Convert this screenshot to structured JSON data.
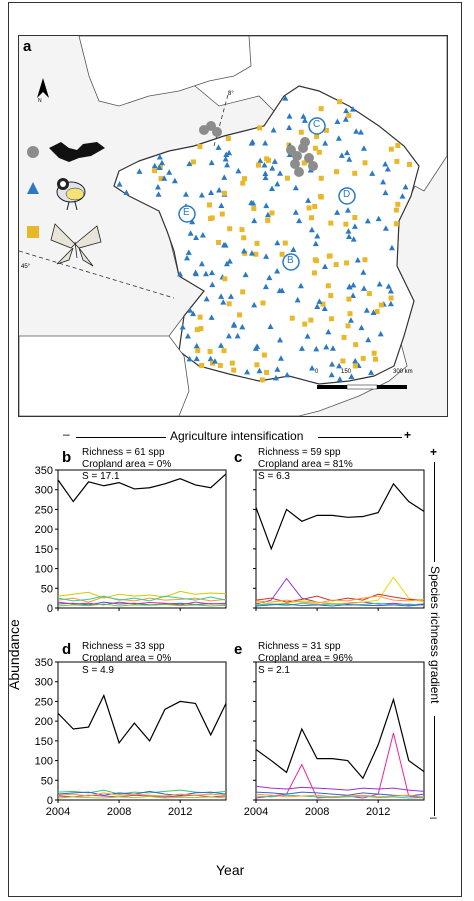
{
  "figure": {
    "map_panel_label": "a",
    "north_label": "N",
    "lat_labels": [
      "45°",
      "8°"
    ],
    "scalebar_ticks": [
      "0",
      "150",
      "300 km"
    ],
    "region_labels": [
      "C",
      "D",
      "E",
      "B"
    ],
    "legend_icons": [
      "bat-icon",
      "bird-icon",
      "butterfly-icon"
    ],
    "gradient_top": {
      "minus": "–",
      "label": "Agriculture intensification",
      "plus": "+"
    },
    "gradient_side": {
      "plus": "+",
      "label": "Species richness gradient",
      "minus": "–"
    },
    "y_axis_label": "Abundance",
    "x_axis_label": "Year",
    "colors": {
      "blue_marker": "#2b79c2",
      "yellow_marker": "#e9b72a",
      "grey_marker": "#8c8c8c",
      "land": "#ffffff",
      "sea": "#f4f4f4"
    }
  },
  "panels": {
    "b": {
      "letter": "b",
      "richness": "Richness = 61 spp",
      "cropland": "Cropland area = 0%",
      "s": "S = 17.1"
    },
    "c": {
      "letter": "c",
      "richness": "Richness = 59 spp",
      "cropland": "Cropland area = 81%",
      "s": "S = 6.3"
    },
    "d": {
      "letter": "d",
      "richness": "Richness = 33 spp",
      "cropland": "Cropland area = 0%",
      "s": "S = 4.9"
    },
    "e": {
      "letter": "e",
      "richness": "Richness = 31 spp",
      "cropland": "Cropland area = 96%",
      "s": "S = 2.1"
    }
  },
  "axes": {
    "y_ticks": [
      "350",
      "300",
      "250",
      "200",
      "150",
      "100",
      "50",
      "0"
    ],
    "x_ticks": [
      "2004",
      "2008",
      "2012"
    ]
  },
  "chart_data": [
    {
      "panel": "b",
      "type": "line",
      "x": [
        2004,
        2005,
        2006,
        2007,
        2008,
        2009,
        2010,
        2011,
        2012,
        2013,
        2014,
        2015
      ],
      "ylim": [
        0,
        350
      ],
      "series": [
        {
          "color": "#000000",
          "values": [
            325,
            270,
            320,
            310,
            318,
            302,
            305,
            315,
            328,
            312,
            305,
            340
          ]
        },
        {
          "color": "#cccc00",
          "values": [
            30,
            35,
            40,
            25,
            35,
            30,
            33,
            28,
            42,
            35,
            38,
            36
          ]
        },
        {
          "color": "#ff9933",
          "values": [
            20,
            25,
            15,
            28,
            22,
            18,
            25,
            20,
            22,
            25,
            18,
            22
          ]
        },
        {
          "color": "#33cc99",
          "values": [
            25,
            18,
            22,
            30,
            20,
            25,
            18,
            30,
            25,
            20,
            28,
            20
          ]
        },
        {
          "color": "#3366cc",
          "values": [
            10,
            12,
            8,
            15,
            10,
            12,
            8,
            10,
            12,
            9,
            11,
            10
          ]
        },
        {
          "color": "#cc3399",
          "values": [
            15,
            10,
            12,
            8,
            15,
            10,
            14,
            12,
            8,
            15,
            10,
            12
          ]
        },
        {
          "color": "#66cc33",
          "values": [
            5,
            8,
            6,
            10,
            5,
            8,
            7,
            9,
            6,
            8,
            5,
            7
          ]
        }
      ]
    },
    {
      "panel": "c",
      "type": "line",
      "x": [
        2004,
        2005,
        2006,
        2007,
        2008,
        2009,
        2010,
        2011,
        2012,
        2013,
        2014,
        2015
      ],
      "ylim": [
        0,
        350
      ],
      "series": [
        {
          "color": "#000000",
          "values": [
            255,
            150,
            250,
            220,
            235,
            235,
            230,
            232,
            242,
            315,
            270,
            245
          ]
        },
        {
          "color": "#9933cc",
          "values": [
            10,
            20,
            75,
            25,
            15,
            10,
            12,
            15,
            10,
            12,
            8,
            10
          ]
        },
        {
          "color": "#dddd00",
          "values": [
            15,
            10,
            12,
            18,
            15,
            12,
            10,
            15,
            20,
            78,
            25,
            15
          ]
        },
        {
          "color": "#cc3333",
          "values": [
            20,
            25,
            15,
            22,
            30,
            18,
            25,
            20,
            35,
            28,
            22,
            20
          ]
        },
        {
          "color": "#ff9933",
          "values": [
            18,
            15,
            20,
            15,
            12,
            20,
            18,
            25,
            30,
            20,
            18,
            22
          ]
        },
        {
          "color": "#33cc99",
          "values": [
            8,
            10,
            6,
            12,
            8,
            10,
            7,
            9,
            12,
            8,
            10,
            7
          ]
        },
        {
          "color": "#3366cc",
          "values": [
            5,
            8,
            10,
            6,
            8,
            5,
            9,
            7,
            6,
            8,
            5,
            9
          ]
        }
      ]
    },
    {
      "panel": "d",
      "type": "line",
      "x": [
        2004,
        2005,
        2006,
        2007,
        2008,
        2009,
        2010,
        2011,
        2012,
        2013,
        2014,
        2015
      ],
      "ylim": [
        0,
        350
      ],
      "series": [
        {
          "color": "#000000",
          "values": [
            220,
            180,
            185,
            265,
            145,
            195,
            150,
            230,
            250,
            245,
            165,
            245
          ]
        },
        {
          "color": "#33cc66",
          "values": [
            20,
            22,
            18,
            25,
            15,
            20,
            18,
            22,
            25,
            20,
            18,
            22
          ]
        },
        {
          "color": "#3366cc",
          "values": [
            15,
            18,
            20,
            12,
            18,
            15,
            22,
            15,
            12,
            18,
            20,
            15
          ]
        },
        {
          "color": "#cc3399",
          "values": [
            10,
            8,
            12,
            10,
            8,
            12,
            10,
            8,
            10,
            12,
            8,
            10
          ]
        },
        {
          "color": "#ff9933",
          "values": [
            12,
            15,
            10,
            18,
            12,
            15,
            12,
            10,
            15,
            12,
            15,
            12
          ]
        },
        {
          "color": "#99cc33",
          "values": [
            5,
            8,
            6,
            5,
            8,
            6,
            9,
            5,
            7,
            6,
            8,
            5
          ]
        }
      ]
    },
    {
      "panel": "e",
      "type": "line",
      "x": [
        2004,
        2005,
        2006,
        2007,
        2008,
        2009,
        2010,
        2011,
        2012,
        2013,
        2014,
        2015
      ],
      "ylim": [
        0,
        350
      ],
      "series": [
        {
          "color": "#000000",
          "values": [
            128,
            100,
            70,
            180,
            105,
            105,
            100,
            55,
            140,
            255,
            100,
            72
          ]
        },
        {
          "color": "#ee2299",
          "values": [
            5,
            10,
            15,
            90,
            5,
            8,
            10,
            5,
            15,
            170,
            10,
            5
          ]
        },
        {
          "color": "#9933cc",
          "values": [
            35,
            30,
            28,
            32,
            30,
            28,
            25,
            30,
            28,
            30,
            25,
            22
          ]
        },
        {
          "color": "#3366cc",
          "values": [
            20,
            18,
            15,
            20,
            18,
            15,
            12,
            18,
            15,
            12,
            10,
            15
          ]
        },
        {
          "color": "#33cc99",
          "values": [
            10,
            8,
            12,
            10,
            8,
            6,
            8,
            10,
            6,
            8,
            5,
            6
          ]
        },
        {
          "color": "#ff9933",
          "values": [
            15,
            12,
            8,
            10,
            12,
            8,
            10,
            12,
            8,
            10,
            12,
            8
          ]
        }
      ]
    }
  ]
}
